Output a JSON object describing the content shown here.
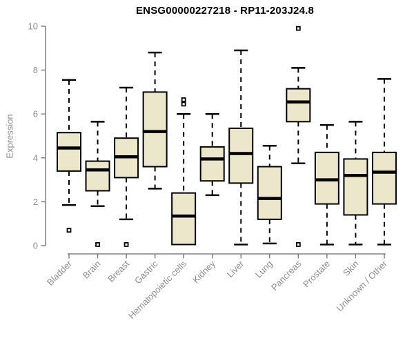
{
  "chart_data": {
    "type": "boxplot",
    "title": "ENSG00000227218 - RP11-203J24.8",
    "ylabel": "Expression",
    "xlabel": "",
    "ylim": [
      0,
      10
    ],
    "yticks": [
      0,
      2,
      4,
      6,
      8,
      10
    ],
    "grid": false,
    "legend": "none",
    "categories": [
      "Bladder",
      "Brain",
      "Breast",
      "Gastric",
      "Hematopoietic cells",
      "Kidney",
      "Liver",
      "Lung",
      "Pancreas",
      "Prostate",
      "Skin",
      "Unknown / Other"
    ],
    "series": [
      {
        "category": "Bladder",
        "low": 1.85,
        "q1": 3.4,
        "median": 4.45,
        "q3": 5.15,
        "high": 7.55,
        "outliers": [
          0.7
        ]
      },
      {
        "category": "Brain",
        "low": 1.8,
        "q1": 2.5,
        "median": 3.45,
        "q3": 3.85,
        "high": 5.65,
        "outliers": [
          0.05
        ]
      },
      {
        "category": "Breast",
        "low": 1.2,
        "q1": 3.1,
        "median": 4.05,
        "q3": 4.9,
        "high": 7.2,
        "outliers": [
          0.05
        ]
      },
      {
        "category": "Gastric",
        "low": 2.6,
        "q1": 3.6,
        "median": 5.2,
        "q3": 7.0,
        "high": 8.8,
        "outliers": []
      },
      {
        "category": "Hematopoietic cells",
        "low": 0.05,
        "q1": 0.05,
        "median": 1.35,
        "q3": 2.4,
        "high": 6.0,
        "outliers": [
          6.45,
          6.65
        ]
      },
      {
        "category": "Kidney",
        "low": 2.3,
        "q1": 2.95,
        "median": 3.95,
        "q3": 4.5,
        "high": 6.0,
        "outliers": []
      },
      {
        "category": "Liver",
        "low": 0.05,
        "q1": 2.85,
        "median": 4.2,
        "q3": 5.35,
        "high": 8.9,
        "outliers": []
      },
      {
        "category": "Lung",
        "low": 0.1,
        "q1": 1.2,
        "median": 2.15,
        "q3": 3.6,
        "high": 4.55,
        "outliers": []
      },
      {
        "category": "Pancreas",
        "low": 3.75,
        "q1": 5.65,
        "median": 6.55,
        "q3": 7.15,
        "high": 8.1,
        "outliers": [
          9.9,
          0.05
        ]
      },
      {
        "category": "Prostate",
        "low": 0.05,
        "q1": 1.9,
        "median": 3.0,
        "q3": 4.25,
        "high": 5.5,
        "outliers": []
      },
      {
        "category": "Skin",
        "low": 0.05,
        "q1": 1.4,
        "median": 3.2,
        "q3": 3.95,
        "high": 5.65,
        "outliers": []
      },
      {
        "category": "Unknown / Other",
        "low": 0.05,
        "q1": 1.9,
        "median": 3.35,
        "q3": 4.25,
        "high": 7.6,
        "outliers": []
      }
    ],
    "colors": {
      "box_fill": "#ECE7CB",
      "box_stroke": "#000000",
      "median": "#000000",
      "whisker": "#000000",
      "outlier_fill": "#ffffff",
      "outlier_stroke": "#000000",
      "axis": "#808080",
      "tick_text": "#8e8e8e",
      "title_text": "#000000",
      "background": "#ffffff"
    }
  }
}
